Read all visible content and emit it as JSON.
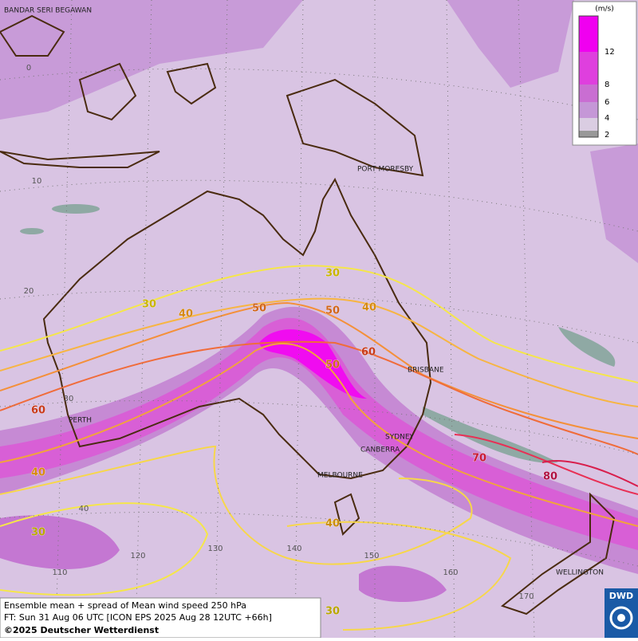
{
  "map": {
    "places": [
      "BANDAR SERI BEGAWAN",
      "PORT MORESBY",
      "BRISBANE",
      "PERTH",
      "SYDNEY",
      "CANBERRA",
      "MELBOURNE",
      "WELLINGTON"
    ],
    "lat_labels": [
      "0",
      "10",
      "20",
      "30",
      "40"
    ],
    "lon_labels": [
      "110",
      "120",
      "130",
      "140",
      "150",
      "160",
      "170"
    ],
    "contour_labels": [
      "30",
      "30",
      "40",
      "50",
      "50",
      "40",
      "60",
      "50",
      "60",
      "40",
      "70",
      "80",
      "40",
      "30",
      "30"
    ],
    "legend": {
      "unit": "(m/s)",
      "ticks": [
        "12",
        "8",
        "6",
        "4",
        "2"
      ]
    }
  },
  "footer": {
    "line1": "Ensemble mean + spread of Mean wind speed 250 hPa",
    "line2": "FT: Sun 31 Aug 06 UTC [ICON EPS 2025 Aug 28 12UTC +66h]",
    "copyright": "©2025 Deutscher Wetterdienst"
  },
  "logo": "DWD"
}
